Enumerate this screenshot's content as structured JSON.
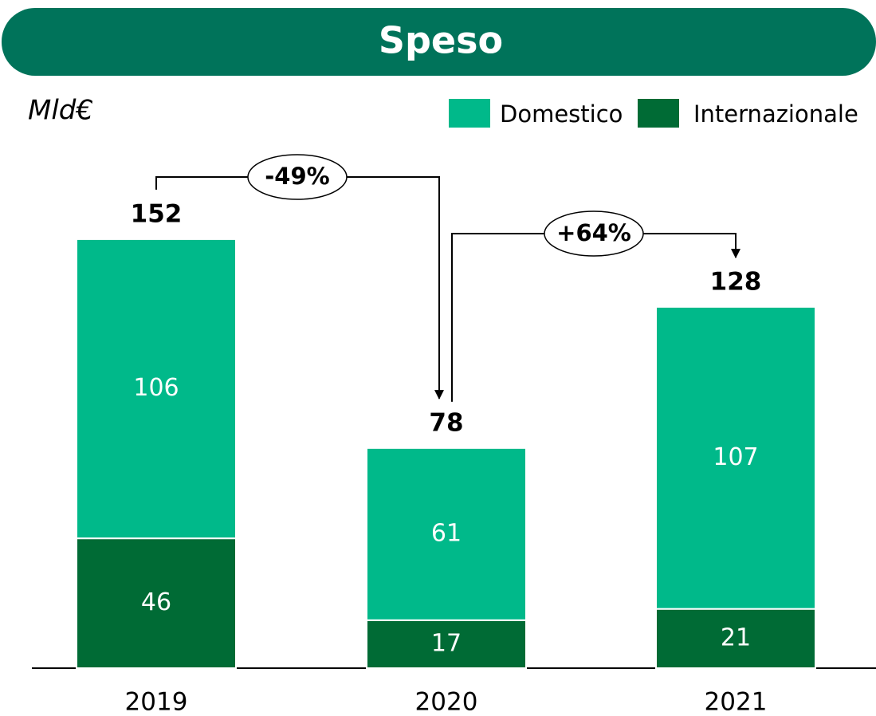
{
  "chart_data": {
    "type": "stacked_bar",
    "title": "Speso",
    "unit_label": "Mld€",
    "categories": [
      "2019",
      "2020",
      "2021"
    ],
    "series": [
      {
        "name": "Internazionale",
        "color": "#006b35",
        "values": [
          46,
          17,
          21
        ]
      },
      {
        "name": "Domestico",
        "color": "#00b98a",
        "values": [
          106,
          61,
          107
        ]
      }
    ],
    "legend_order": [
      1,
      0
    ],
    "totals": [
      152,
      78,
      128
    ],
    "annotations": [
      "-49%",
      "+64%"
    ]
  }
}
